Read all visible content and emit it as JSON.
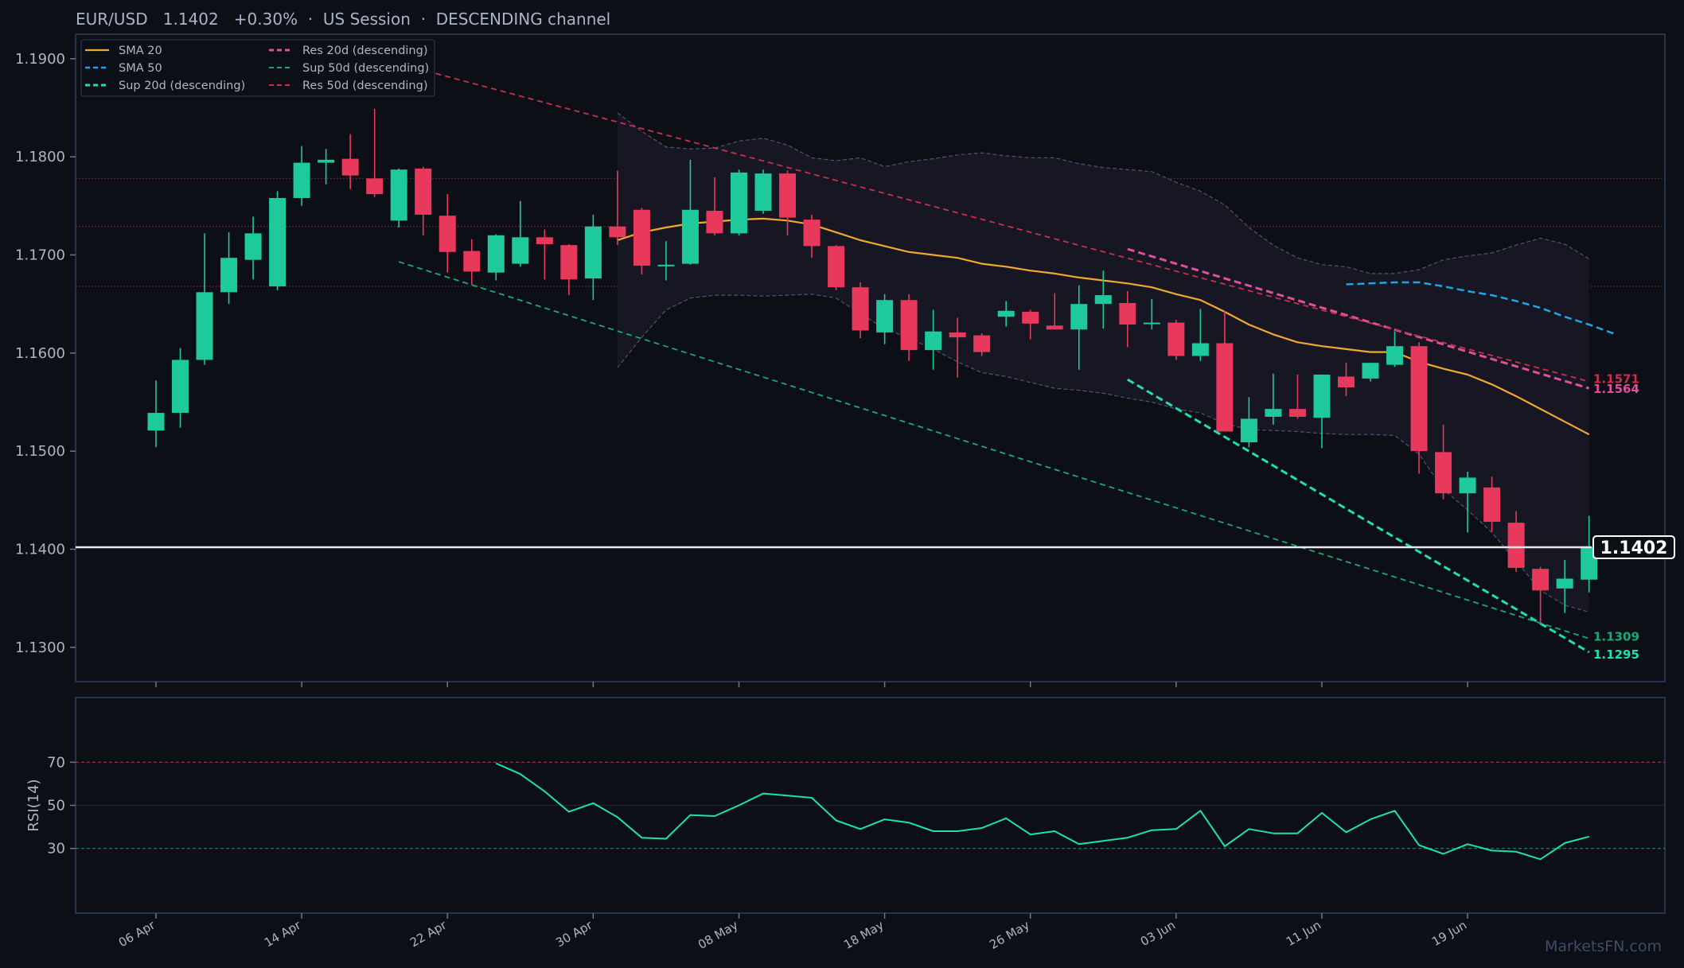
{
  "header": {
    "symbol": "EUR/USD",
    "price": "1.1402",
    "change": "+0.30%",
    "session": "US Session",
    "channel": "DESCENDING channel"
  },
  "colors": {
    "background": "#0c0f16",
    "panel_border": "#23344b",
    "bull": "#1ec99c",
    "bear": "#e8395c",
    "sma20": "#f0a830",
    "sma50": "#1ea5e8",
    "sup20": "#1ee0b0",
    "sup50": "#1aa878",
    "res20": "#e0509a",
    "res50": "#c8304c",
    "rsi": "#1ee0b0",
    "price_line": "#e8e8e8"
  },
  "watermark": "MarketsFN.com",
  "chart_data": [
    {
      "type": "candlestick",
      "panel": "price",
      "ylim": [
        1.1265,
        1.1925
      ],
      "y_ticks": [
        1.13,
        1.14,
        1.15,
        1.16,
        1.17,
        1.18,
        1.19
      ],
      "y_tick_labels": [
        "1.1300",
        "1.1400",
        "1.1500",
        "1.1600",
        "1.1700",
        "1.1800",
        "1.1900"
      ],
      "x_tick_labels": [
        "06 Apr",
        "14 Apr",
        "22 Apr",
        "30 Apr",
        "08 May",
        "18 May",
        "26 May",
        "03 Jun",
        "11 Jun",
        "19 Jun"
      ],
      "x_tick_bar_index": [
        0,
        6,
        12,
        18,
        24,
        30,
        36,
        42,
        48,
        54
      ],
      "legend_position": "top-left",
      "grid": false,
      "candles": [
        {
          "o": 1.1521,
          "h": 1.1572,
          "l": 1.1504,
          "c": 1.1539
        },
        {
          "o": 1.1539,
          "h": 1.1605,
          "l": 1.1524,
          "c": 1.1593
        },
        {
          "o": 1.1593,
          "h": 1.1722,
          "l": 1.1588,
          "c": 1.1662
        },
        {
          "o": 1.1662,
          "h": 1.1723,
          "l": 1.165,
          "c": 1.1697
        },
        {
          "o": 1.1695,
          "h": 1.1739,
          "l": 1.1675,
          "c": 1.1722
        },
        {
          "o": 1.1668,
          "h": 1.1765,
          "l": 1.1664,
          "c": 1.1758
        },
        {
          "o": 1.1758,
          "h": 1.1811,
          "l": 1.175,
          "c": 1.1794
        },
        {
          "o": 1.1794,
          "h": 1.1808,
          "l": 1.1772,
          "c": 1.1797
        },
        {
          "o": 1.1798,
          "h": 1.1823,
          "l": 1.1767,
          "c": 1.1781
        },
        {
          "o": 1.1778,
          "h": 1.1849,
          "l": 1.1759,
          "c": 1.1762
        },
        {
          "o": 1.1735,
          "h": 1.1788,
          "l": 1.1728,
          "c": 1.1787
        },
        {
          "o": 1.1788,
          "h": 1.179,
          "l": 1.172,
          "c": 1.1741
        },
        {
          "o": 1.174,
          "h": 1.1762,
          "l": 1.1682,
          "c": 1.1703
        },
        {
          "o": 1.1704,
          "h": 1.1716,
          "l": 1.167,
          "c": 1.1683
        },
        {
          "o": 1.1682,
          "h": 1.1721,
          "l": 1.1674,
          "c": 1.172
        },
        {
          "o": 1.1691,
          "h": 1.1755,
          "l": 1.1688,
          "c": 1.1718
        },
        {
          "o": 1.1718,
          "h": 1.1726,
          "l": 1.1675,
          "c": 1.1711
        },
        {
          "o": 1.171,
          "h": 1.1711,
          "l": 1.1659,
          "c": 1.1675
        },
        {
          "o": 1.1676,
          "h": 1.1741,
          "l": 1.1654,
          "c": 1.1729
        },
        {
          "o": 1.1729,
          "h": 1.1786,
          "l": 1.171,
          "c": 1.1718
        },
        {
          "o": 1.1746,
          "h": 1.1748,
          "l": 1.168,
          "c": 1.1689
        },
        {
          "o": 1.1689,
          "h": 1.1714,
          "l": 1.1674,
          "c": 1.169
        },
        {
          "o": 1.1691,
          "h": 1.1797,
          "l": 1.169,
          "c": 1.1746
        },
        {
          "o": 1.1745,
          "h": 1.1779,
          "l": 1.172,
          "c": 1.1722
        },
        {
          "o": 1.1722,
          "h": 1.1787,
          "l": 1.172,
          "c": 1.1784
        },
        {
          "o": 1.1745,
          "h": 1.1787,
          "l": 1.1742,
          "c": 1.1783
        },
        {
          "o": 1.1783,
          "h": 1.1786,
          "l": 1.172,
          "c": 1.1738
        },
        {
          "o": 1.1736,
          "h": 1.1741,
          "l": 1.1697,
          "c": 1.1709
        },
        {
          "o": 1.1709,
          "h": 1.171,
          "l": 1.1664,
          "c": 1.1667
        },
        {
          "o": 1.1667,
          "h": 1.1672,
          "l": 1.1615,
          "c": 1.1623
        },
        {
          "o": 1.1621,
          "h": 1.166,
          "l": 1.1609,
          "c": 1.1654
        },
        {
          "o": 1.1654,
          "h": 1.166,
          "l": 1.1592,
          "c": 1.1603
        },
        {
          "o": 1.1603,
          "h": 1.1644,
          "l": 1.1583,
          "c": 1.1622
        },
        {
          "o": 1.1621,
          "h": 1.1636,
          "l": 1.1575,
          "c": 1.1616
        },
        {
          "o": 1.1618,
          "h": 1.162,
          "l": 1.1597,
          "c": 1.1601
        },
        {
          "o": 1.1637,
          "h": 1.1653,
          "l": 1.1627,
          "c": 1.1643
        },
        {
          "o": 1.1642,
          "h": 1.1644,
          "l": 1.1614,
          "c": 1.163
        },
        {
          "o": 1.1628,
          "h": 1.1661,
          "l": 1.1624,
          "c": 1.1624
        },
        {
          "o": 1.1624,
          "h": 1.1669,
          "l": 1.1583,
          "c": 1.165
        },
        {
          "o": 1.165,
          "h": 1.1684,
          "l": 1.1625,
          "c": 1.1659
        },
        {
          "o": 1.1651,
          "h": 1.1663,
          "l": 1.1606,
          "c": 1.1629
        },
        {
          "o": 1.1631,
          "h": 1.1655,
          "l": 1.1624,
          "c": 1.1631
        },
        {
          "o": 1.1631,
          "h": 1.1634,
          "l": 1.1593,
          "c": 1.1597
        },
        {
          "o": 1.1597,
          "h": 1.1645,
          "l": 1.1592,
          "c": 1.161
        },
        {
          "o": 1.161,
          "h": 1.1643,
          "l": 1.152,
          "c": 1.152
        },
        {
          "o": 1.1509,
          "h": 1.1555,
          "l": 1.1504,
          "c": 1.1533
        },
        {
          "o": 1.1535,
          "h": 1.1579,
          "l": 1.1527,
          "c": 1.1543
        },
        {
          "o": 1.1543,
          "h": 1.1578,
          "l": 1.1533,
          "c": 1.1535
        },
        {
          "o": 1.1534,
          "h": 1.1578,
          "l": 1.1503,
          "c": 1.1578
        },
        {
          "o": 1.1576,
          "h": 1.159,
          "l": 1.1556,
          "c": 1.1565
        },
        {
          "o": 1.1574,
          "h": 1.159,
          "l": 1.1571,
          "c": 1.159
        },
        {
          "o": 1.1588,
          "h": 1.1622,
          "l": 1.1586,
          "c": 1.1607
        },
        {
          "o": 1.1607,
          "h": 1.1611,
          "l": 1.1477,
          "c": 1.15
        },
        {
          "o": 1.1499,
          "h": 1.1527,
          "l": 1.1451,
          "c": 1.1457
        },
        {
          "o": 1.1457,
          "h": 1.1479,
          "l": 1.1417,
          "c": 1.1473
        },
        {
          "o": 1.1463,
          "h": 1.1474,
          "l": 1.1418,
          "c": 1.1428
        },
        {
          "o": 1.1427,
          "h": 1.1439,
          "l": 1.1377,
          "c": 1.1381
        },
        {
          "o": 1.138,
          "h": 1.1382,
          "l": 1.1325,
          "c": 1.1358
        },
        {
          "o": 1.136,
          "h": 1.1389,
          "l": 1.1335,
          "c": 1.137
        },
        {
          "o": 1.1369,
          "h": 1.1434,
          "l": 1.1356,
          "c": 1.1402
        }
      ],
      "bollinger": {
        "start_index": 19,
        "upper": [
          1.1845,
          1.1826,
          1.181,
          1.1808,
          1.1809,
          1.1816,
          1.1819,
          1.1812,
          1.1799,
          1.1796,
          1.1799,
          1.179,
          1.1795,
          1.1798,
          1.1802,
          1.1804,
          1.1801,
          1.1799,
          1.1799,
          1.1793,
          1.1789,
          1.1787,
          1.1785,
          1.1774,
          1.1765,
          1.1751,
          1.1728,
          1.171,
          1.1697,
          1.169,
          1.1688,
          1.1681,
          1.1681,
          1.1685,
          1.1695,
          1.1699,
          1.1702,
          1.171,
          1.1717,
          1.1711,
          1.1696
        ],
        "lower": [
          1.1585,
          1.1616,
          1.1644,
          1.1656,
          1.1659,
          1.1659,
          1.1658,
          1.1659,
          1.166,
          1.1656,
          1.164,
          1.1625,
          1.1615,
          1.1604,
          1.1591,
          1.158,
          1.1576,
          1.157,
          1.1564,
          1.1562,
          1.1559,
          1.1554,
          1.155,
          1.1543,
          1.1539,
          1.1528,
          1.1522,
          1.1521,
          1.152,
          1.1518,
          1.1517,
          1.1517,
          1.1516,
          1.1497,
          1.1461,
          1.144,
          1.1417,
          1.1388,
          1.1358,
          1.1343,
          1.1336
        ]
      },
      "series": [
        {
          "name": "SMA 20",
          "style": "solid",
          "start_index": 19,
          "values": [
            1.1715,
            1.1723,
            1.1728,
            1.1732,
            1.1734,
            1.1736,
            1.1737,
            1.1735,
            1.1731,
            1.1723,
            1.1715,
            1.1709,
            1.1703,
            1.17,
            1.1697,
            1.1691,
            1.1688,
            1.1684,
            1.1681,
            1.1677,
            1.1674,
            1.1671,
            1.1667,
            1.166,
            1.1654,
            1.1642,
            1.1629,
            1.1619,
            1.1611,
            1.1607,
            1.1604,
            1.1601,
            1.1601,
            1.1591,
            1.1584,
            1.1578,
            1.1568,
            1.1556,
            1.1543,
            1.153,
            1.1517
          ]
        },
        {
          "name": "SMA 50",
          "style": "dashed",
          "start_index": 49,
          "values": [
            1.167,
            1.1671,
            1.1672,
            1.1672,
            1.1668,
            1.1663,
            1.1659,
            1.1653,
            1.1646,
            1.1637,
            1.1629,
            1.162
          ]
        },
        {
          "name": "Sup 20d (descending)",
          "style": "dashed",
          "from": {
            "index": 40,
            "value": 1.1573
          },
          "to": {
            "index": 59,
            "value": 1.1295
          },
          "label": "1.1295"
        },
        {
          "name": "Res 20d (descending)",
          "style": "dashed",
          "from": {
            "index": 40,
            "value": 1.1706
          },
          "to": {
            "index": 59,
            "value": 1.1564
          },
          "label": "1.1564"
        },
        {
          "name": "Sup 50d (descending)",
          "style": "dashed",
          "from": {
            "index": 10,
            "value": 1.1693
          },
          "to": {
            "index": 59,
            "value": 1.1309
          },
          "label": "1.1309"
        },
        {
          "name": "Res 50d (descending)",
          "style": "dashed",
          "from": {
            "index": 10,
            "value": 1.1895
          },
          "to": {
            "index": 59,
            "value": 1.1571
          },
          "label": "1.1571"
        }
      ],
      "horizontal_levels": [
        1.1778,
        1.1729,
        1.1668
      ],
      "current_price": {
        "value": 1.1402,
        "label": "1.1402"
      }
    },
    {
      "type": "line",
      "panel": "indicator",
      "ylabel": "RSI(14)",
      "ylim": [
        0,
        100
      ],
      "y_ticks": [
        30,
        50,
        70
      ],
      "reference_lines": [
        70,
        30
      ],
      "series": [
        {
          "name": "RSI(14)",
          "start_index": 14,
          "values": [
            69.5,
            64.5,
            56.5,
            47,
            51,
            44.5,
            35,
            34.5,
            45.5,
            45,
            50,
            55.5,
            54.5,
            53.5,
            43,
            39,
            43.5,
            42,
            38,
            38,
            39.5,
            44,
            36.5,
            38,
            32,
            33.5,
            35,
            38.5,
            39,
            47.5,
            31,
            39,
            37,
            37,
            46.5,
            37.5,
            43.5,
            47.5,
            31.5,
            27.5,
            32,
            29,
            28.5,
            25,
            32.5,
            35.5
          ]
        }
      ]
    }
  ]
}
